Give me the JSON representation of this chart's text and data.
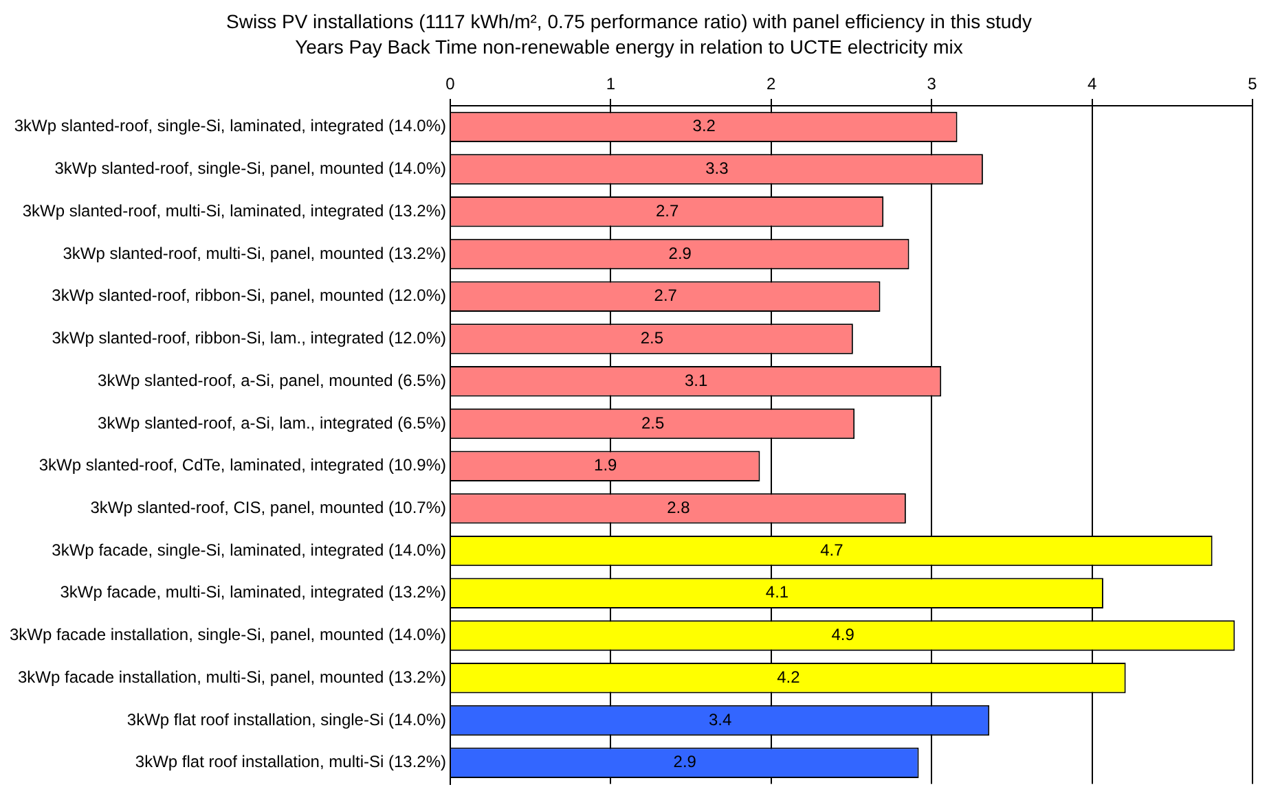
{
  "chart_data": {
    "type": "bar",
    "orientation": "horizontal",
    "title": "Swiss PV installations (1117 kWh/m², 0.75 performance ratio) with panel efficiency in this study",
    "subtitle": "Years Pay Back Time non-renewable energy in relation to UCTE electricity mix",
    "categories": [
      "3kWp slanted-roof, single-Si, laminated, integrated (14.0%)",
      "3kWp slanted-roof, single-Si, panel, mounted (14.0%)",
      "3kWp slanted-roof, multi-Si, laminated, integrated (13.2%)",
      "3kWp slanted-roof, multi-Si, panel, mounted (13.2%)",
      "3kWp slanted-roof, ribbon-Si, panel, mounted (12.0%)",
      "3kWp slanted-roof, ribbon-Si, lam., integrated (12.0%)",
      "3kWp slanted-roof, a-Si, panel, mounted (6.5%)",
      "3kWp slanted-roof, a-Si, lam., integrated (6.5%)",
      "3kWp slanted-roof, CdTe, laminated, integrated (10.9%)",
      "3kWp slanted-roof, CIS, panel, mounted (10.7%)",
      "3kWp facade, single-Si, laminated, integrated (14.0%)",
      "3kWp facade, multi-Si, laminated, integrated (13.2%)",
      "3kWp facade installation, single-Si, panel, mounted (14.0%)",
      "3kWp facade installation, multi-Si, panel, mounted (13.2%)",
      "3kWp flat roof installation, single-Si (14.0%)",
      "3kWp flat roof installation, multi-Si (13.2%)"
    ],
    "values": [
      3.16,
      3.32,
      2.7,
      2.86,
      2.68,
      2.51,
      3.06,
      2.52,
      1.93,
      2.84,
      4.75,
      4.07,
      4.89,
      4.21,
      3.36,
      2.92
    ],
    "value_labels": [
      "3.2",
      "3.3",
      "2.7",
      "2.9",
      "2.7",
      "2.5",
      "3.1",
      "2.5",
      "1.9",
      "2.8",
      "4.7",
      "4.1",
      "4.9",
      "4.2",
      "3.4",
      "2.9"
    ],
    "colors": [
      "#ff8080",
      "#ff8080",
      "#ff8080",
      "#ff8080",
      "#ff8080",
      "#ff8080",
      "#ff8080",
      "#ff8080",
      "#ff8080",
      "#ff8080",
      "#ffff00",
      "#ffff00",
      "#ffff00",
      "#ffff00",
      "#3366ff",
      "#3366ff"
    ],
    "xlim": [
      0,
      5
    ],
    "xticks": [
      0,
      1,
      2,
      3,
      4,
      5
    ],
    "grid": "x"
  }
}
